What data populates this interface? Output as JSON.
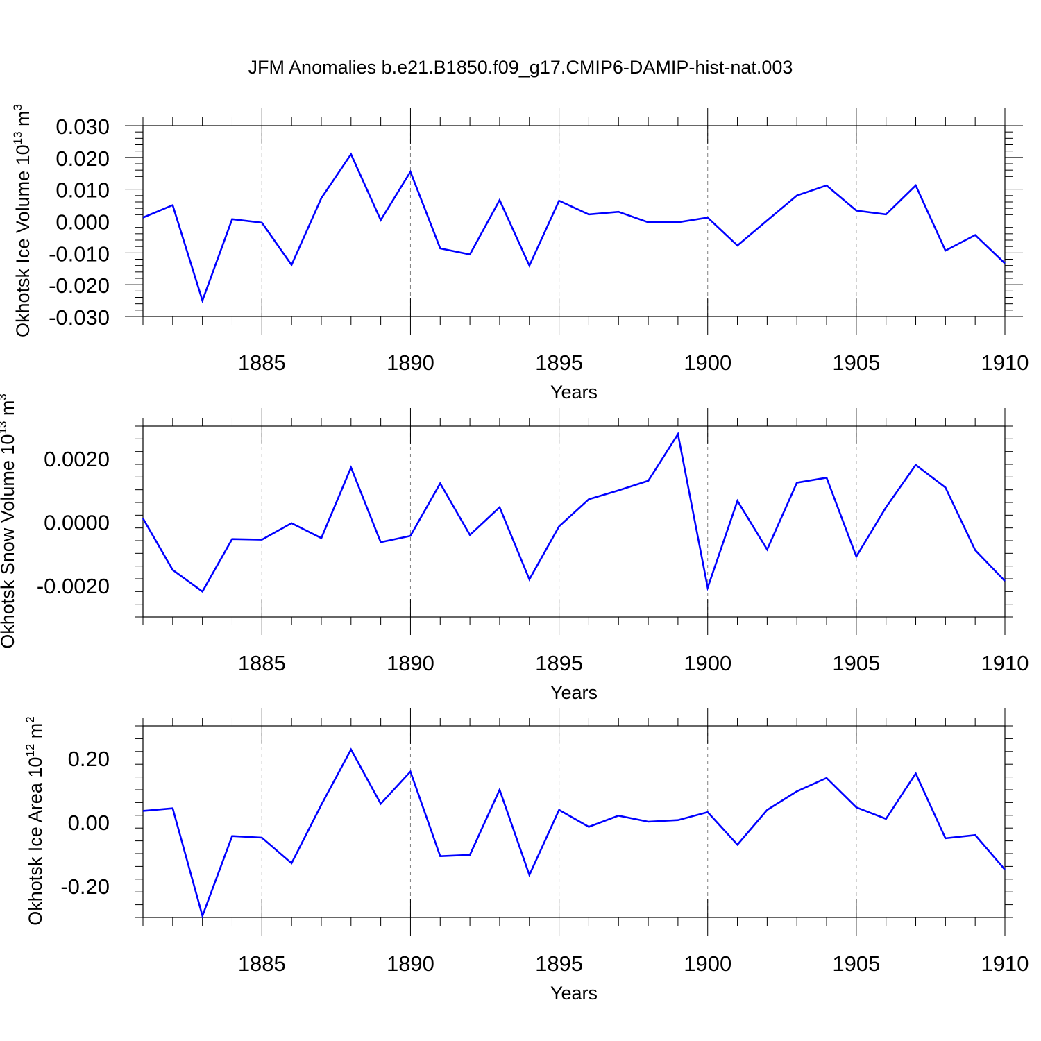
{
  "title": "JFM Anomalies b.e21.B1850.f09_g17.CMIP6-DAMIP-hist-nat.003",
  "colors": {
    "line": "#0000ff",
    "axis": "#000000",
    "grid": "#808080"
  },
  "chart_data": [
    {
      "type": "line",
      "ylabel": "Okhotsk Ice Volume 10",
      "ylabel_exp": "13",
      "ylabel_unit": " m",
      "ylabel_unit_exp": "3",
      "xlabel": "Years",
      "xlim": [
        1881,
        1910
      ],
      "ylim": [
        -0.03,
        0.03
      ],
      "x_ticks": [
        1885,
        1890,
        1895,
        1900,
        1905,
        1910
      ],
      "x_tick_labels": [
        "1885",
        "1890",
        "1895",
        "1900",
        "1905",
        "1910"
      ],
      "y_ticks": [
        -0.03,
        -0.02,
        -0.01,
        0.0,
        0.01,
        0.02,
        0.03
      ],
      "y_tick_labels": [
        "-0.030",
        "-0.020",
        "-0.010",
        "0.000",
        "0.010",
        "0.020",
        "0.030"
      ],
      "series": [
        {
          "name": "Okhotsk Ice Volume",
          "x": [
            1881,
            1882,
            1883,
            1884,
            1885,
            1886,
            1887,
            1888,
            1889,
            1890,
            1891,
            1892,
            1893,
            1894,
            1895,
            1896,
            1897,
            1898,
            1899,
            1900,
            1901,
            1902,
            1903,
            1904,
            1905,
            1906,
            1907,
            1908,
            1909,
            1910
          ],
          "values": [
            0.0011,
            0.005,
            -0.025,
            0.0006,
            -0.0005,
            -0.0138,
            0.0072,
            0.021,
            0.0003,
            0.0155,
            -0.0086,
            -0.0105,
            0.0066,
            -0.014,
            0.0064,
            0.0021,
            0.0029,
            -0.0004,
            -0.0004,
            0.0011,
            -0.0077,
            0.0002,
            0.008,
            0.0112,
            0.0033,
            0.0021,
            0.0112,
            -0.0093,
            -0.0044,
            -0.0133
          ]
        }
      ]
    },
    {
      "type": "line",
      "ylabel": "Okhotsk Snow Volume 10",
      "ylabel_exp": "13",
      "ylabel_unit": " m",
      "ylabel_unit_exp": "3",
      "xlabel": "Years",
      "xlim": [
        1881,
        1910
      ],
      "ylim": [
        -0.003,
        0.003
      ],
      "x_ticks": [
        1885,
        1890,
        1895,
        1900,
        1905,
        1910
      ],
      "x_tick_labels": [
        "1885",
        "1890",
        "1895",
        "1900",
        "1905",
        "1910"
      ],
      "y_ticks": [
        -0.002,
        0.0,
        0.002
      ],
      "y_tick_labels": [
        "-0.0020",
        "0.0000",
        "0.0020"
      ],
      "series": [
        {
          "name": "Okhotsk Snow Volume",
          "x": [
            1881,
            1882,
            1883,
            1884,
            1885,
            1886,
            1887,
            1888,
            1889,
            1890,
            1891,
            1892,
            1893,
            1894,
            1895,
            1896,
            1897,
            1898,
            1899,
            1900,
            1901,
            1902,
            1903,
            1904,
            1905,
            1906,
            1907,
            1908,
            1909,
            1910
          ],
          "values": [
            0.0001,
            -0.00152,
            -0.0022,
            -0.00055,
            -0.00057,
            -5e-05,
            -0.00052,
            0.0017,
            -0.00065,
            -0.00045,
            0.0012,
            -0.00042,
            0.00045,
            -0.00182,
            -0.00015,
            0.0007,
            0.00098,
            0.00128,
            0.00275,
            -0.00208,
            0.00065,
            -0.00088,
            0.00122,
            0.00138,
            -0.0011,
            0.00045,
            0.00178,
            0.00107,
            -0.0009,
            -0.00187
          ]
        }
      ]
    },
    {
      "type": "line",
      "ylabel": "Okhotsk Ice Area 10",
      "ylabel_exp": "12",
      "ylabel_unit": " m",
      "ylabel_unit_exp": "2",
      "xlabel": "Years",
      "xlim": [
        1881,
        1910
      ],
      "ylim": [
        -0.3,
        0.3
      ],
      "x_ticks": [
        1885,
        1890,
        1895,
        1900,
        1905,
        1910
      ],
      "x_tick_labels": [
        "1885",
        "1890",
        "1895",
        "1900",
        "1905",
        "1910"
      ],
      "y_ticks": [
        -0.2,
        0.0,
        0.2
      ],
      "y_tick_labels": [
        "-0.20",
        "0.00",
        "0.20"
      ],
      "series": [
        {
          "name": "Okhotsk Ice Area",
          "x": [
            1881,
            1882,
            1883,
            1884,
            1885,
            1886,
            1887,
            1888,
            1889,
            1890,
            1891,
            1892,
            1893,
            1894,
            1895,
            1896,
            1897,
            1898,
            1899,
            1900,
            1901,
            1902,
            1903,
            1904,
            1905,
            1906,
            1907,
            1908,
            1909,
            1910
          ],
          "values": [
            0.034,
            0.042,
            -0.295,
            -0.045,
            -0.05,
            -0.13,
            0.053,
            0.226,
            0.056,
            0.157,
            -0.108,
            -0.104,
            0.1,
            -0.167,
            0.037,
            -0.016,
            0.019,
            0.0,
            0.005,
            0.03,
            -0.072,
            0.037,
            0.095,
            0.137,
            0.045,
            0.009,
            0.151,
            -0.052,
            -0.042,
            -0.15
          ]
        }
      ]
    }
  ]
}
